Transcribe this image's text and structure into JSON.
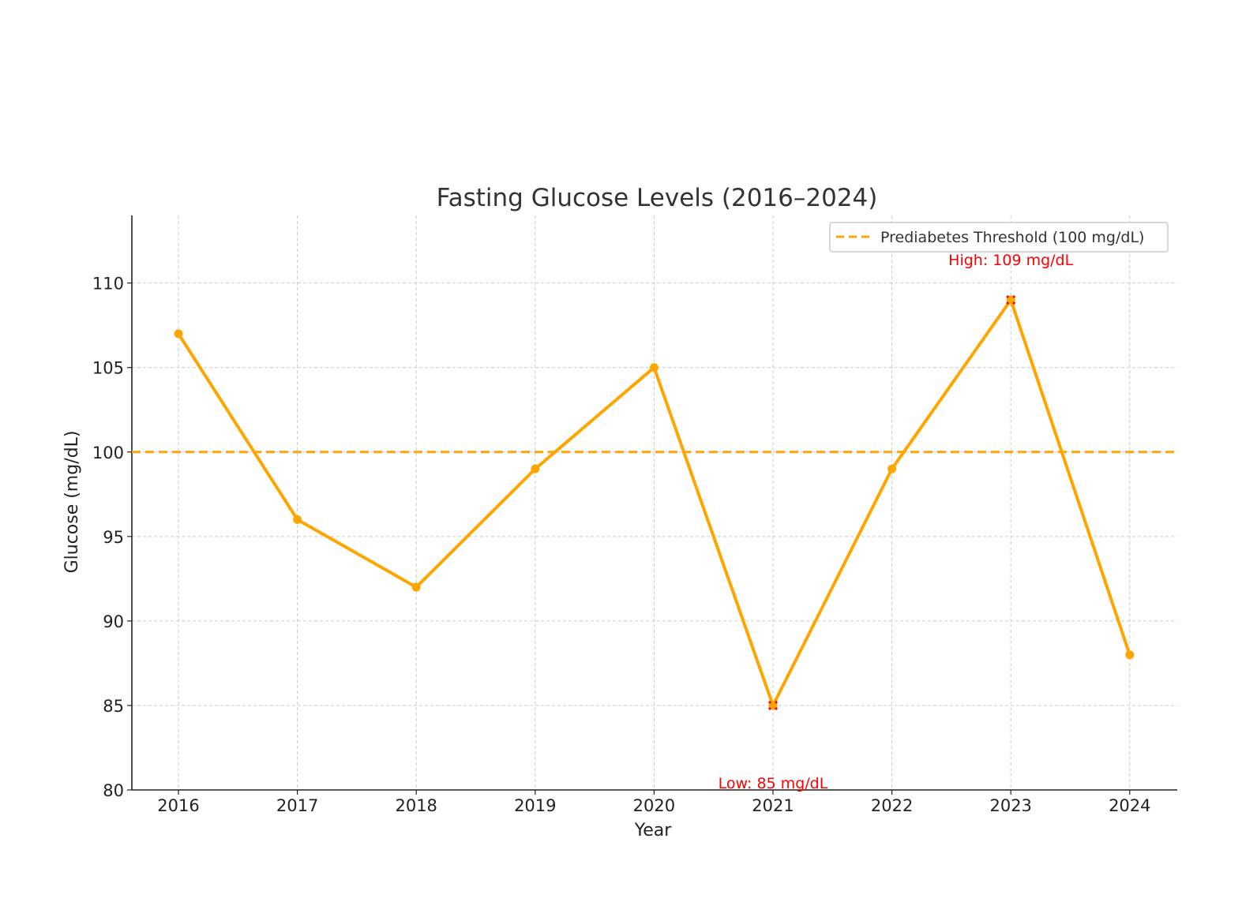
{
  "chart_data": {
    "type": "line",
    "title": "Fasting Glucose Levels (2016–2024)",
    "xlabel": "Year",
    "ylabel": "Glucose (mg/dL)",
    "categories": [
      "2016",
      "2017",
      "2018",
      "2019",
      "2020",
      "2021",
      "2022",
      "2023",
      "2024"
    ],
    "series": [
      {
        "values": [
          107,
          96,
          92,
          99,
          105,
          85,
          99,
          109,
          88
        ],
        "color": "#FFA500"
      }
    ],
    "ylim": [
      80,
      114
    ],
    "yticks": [
      80,
      85,
      90,
      95,
      100,
      105,
      110
    ],
    "grid": true,
    "legend": {
      "placement": "top-right",
      "entries": [
        {
          "label": "Prediabetes Threshold (100 mg/dL)",
          "style": "dashed",
          "color": "#FFA500"
        }
      ]
    },
    "reference_lines": [
      {
        "y": 100,
        "label": "Prediabetes Threshold (100 mg/dL)",
        "color": "#FFA500",
        "style": "dashed"
      }
    ],
    "annotations": [
      {
        "x": "2023",
        "y": 109,
        "text": "High: 109 mg/dL",
        "color": "#FF0000",
        "position": "above"
      },
      {
        "x": "2021",
        "y": 85,
        "text": "Low: 85 mg/dL",
        "color": "#FF0000",
        "position": "below"
      }
    ],
    "highlight_points": [
      {
        "x": "2023",
        "y": 109,
        "marker": "x",
        "color": "#FF0000"
      },
      {
        "x": "2021",
        "y": 85,
        "marker": "x",
        "color": "#FF0000"
      }
    ]
  }
}
